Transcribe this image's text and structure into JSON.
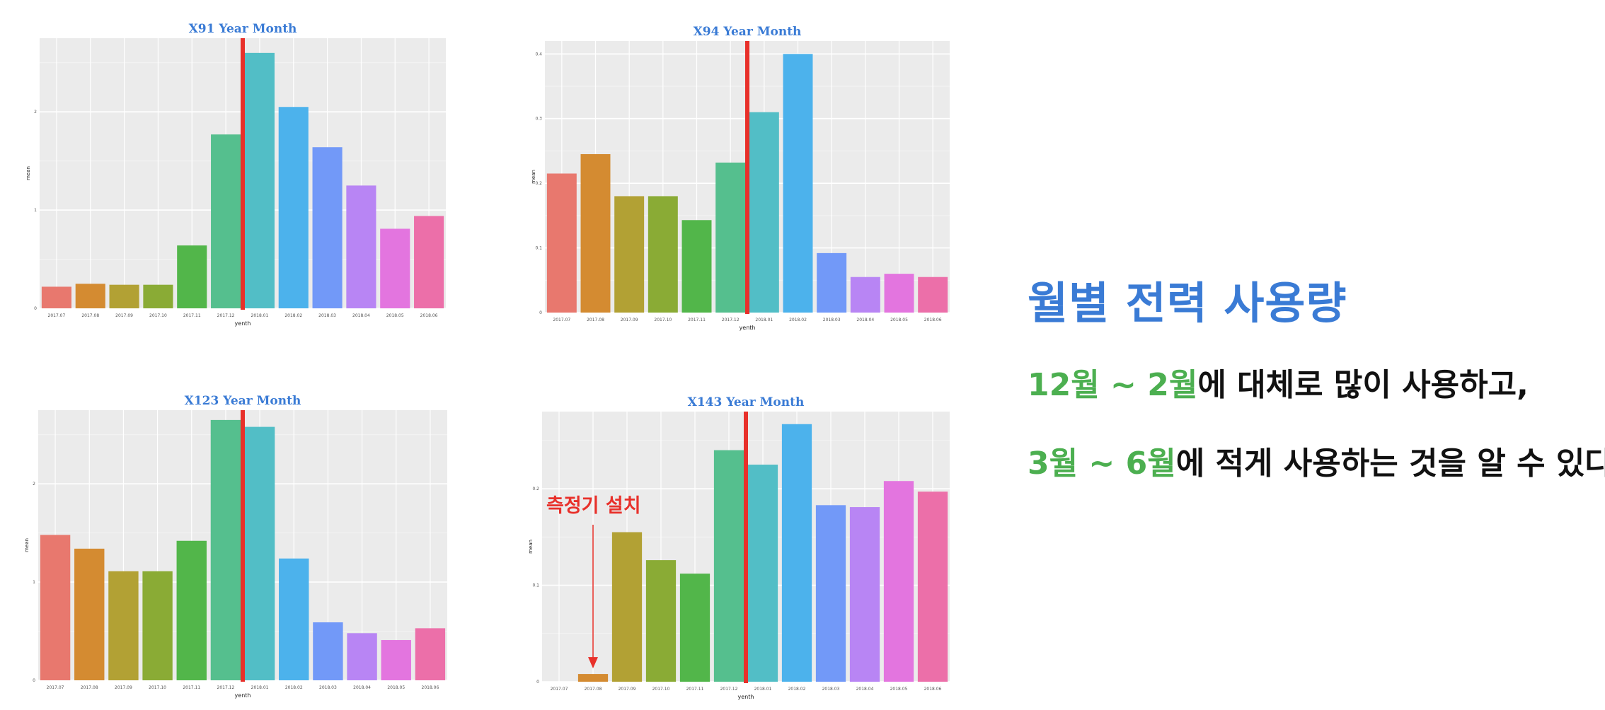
{
  "chart_data": [
    {
      "type": "bar",
      "title": "X91 Year Month",
      "xlabel": "yenth",
      "ylabel": "mean",
      "categories": [
        "2017.07",
        "2017.08",
        "2017.09",
        "2017.10",
        "2017.11",
        "2017.12",
        "2018.01",
        "2018.02",
        "2018.03",
        "2018.04",
        "2018.05",
        "2018.06"
      ],
      "values": [
        0.22,
        0.25,
        0.24,
        0.24,
        0.64,
        1.77,
        2.6,
        2.05,
        1.64,
        1.25,
        0.81,
        0.94
      ],
      "ylim": [
        0,
        2.75
      ],
      "yticks": [
        0,
        1,
        2
      ],
      "marker_after": "2017.12"
    },
    {
      "type": "bar",
      "title": "X94 Year Month",
      "xlabel": "yenth",
      "ylabel": "mean",
      "categories": [
        "2017.07",
        "2017.08",
        "2017.09",
        "2017.10",
        "2017.11",
        "2017.12",
        "2018.01",
        "2018.02",
        "2018.03",
        "2018.04",
        "2018.05",
        "2018.06"
      ],
      "values": [
        0.215,
        0.245,
        0.18,
        0.18,
        0.143,
        0.232,
        0.31,
        0.4,
        0.092,
        0.055,
        0.06,
        0.055
      ],
      "ylim": [
        0,
        0.42
      ],
      "yticks": [
        0,
        0.1,
        0.2,
        0.3,
        0.4
      ],
      "marker_after": "2017.12"
    },
    {
      "type": "bar",
      "title": "X123 Year Month",
      "xlabel": "yenth",
      "ylabel": "mean",
      "categories": [
        "2017.07",
        "2017.08",
        "2017.09",
        "2017.10",
        "2017.11",
        "2017.12",
        "2018.01",
        "2018.02",
        "2018.03",
        "2018.04",
        "2018.05",
        "2018.06"
      ],
      "values": [
        1.48,
        1.34,
        1.11,
        1.11,
        1.42,
        2.65,
        2.58,
        1.24,
        0.59,
        0.48,
        0.41,
        0.53
      ],
      "ylim": [
        0,
        2.75
      ],
      "yticks": [
        0,
        1,
        2
      ],
      "marker_after": "2017.12"
    },
    {
      "type": "bar",
      "title": "X143 Year Month",
      "xlabel": "yenth",
      "ylabel": "mean",
      "categories": [
        "2017.07",
        "2017.08",
        "2017.09",
        "2017.10",
        "2017.11",
        "2017.12",
        "2018.01",
        "2018.02",
        "2018.03",
        "2018.04",
        "2018.05",
        "2018.06"
      ],
      "values": [
        0,
        0.008,
        0.155,
        0.126,
        0.112,
        0.24,
        0.225,
        0.267,
        0.183,
        0.181,
        0.208,
        0.197
      ],
      "ylim": [
        0,
        0.28
      ],
      "yticks": [
        0,
        0.1,
        0.2
      ],
      "marker_after": "2017.12",
      "annotation": {
        "text": "측정기 설치",
        "target": "2017.08"
      }
    }
  ],
  "palette": [
    "#e8786e",
    "#d48b31",
    "#b2a134",
    "#8aab35",
    "#52b64a",
    "#55bf8e",
    "#52bec6",
    "#4cb2ec",
    "#7299f8",
    "#b885f4",
    "#e375df",
    "#ec6fa9"
  ],
  "marker_color": "#e8302a",
  "title_color": "#3a7bd5",
  "text": {
    "main_title": "월별 전력 사용량",
    "line1_green": "12월 ~ 2월",
    "line1_rest": "에 대체로 많이 사용하고,",
    "line2_green": "3월 ~ 6월",
    "line2_rest": "에 적게 사용하는 것을 알 수 있다"
  }
}
